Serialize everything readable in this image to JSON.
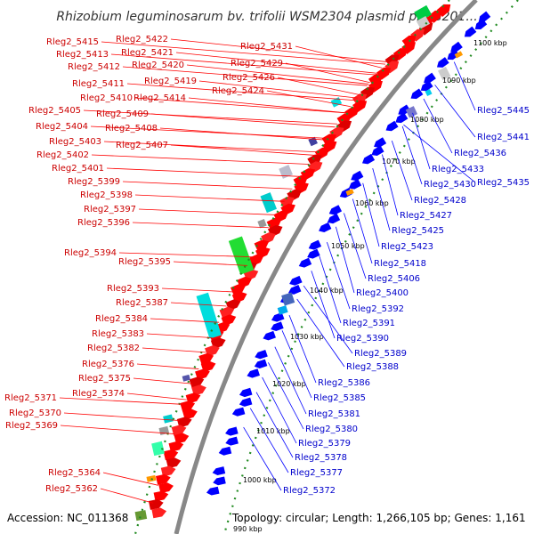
{
  "title": "Rhizobium leguminosarum bv. trifolii WSM2304 plasmid pRLG201...",
  "footer": {
    "accession": "Accession: NC_011368",
    "topology": "Topology: circular; Length: 1,266,105 bp; Genes: 1,161"
  },
  "colors": {
    "forward": "#ff0000",
    "reverse": "#0000ff",
    "backbone": "#888888",
    "gc_dots": "#228b22"
  },
  "kbp_ticks": [
    "1100 kbp",
    "1090 kbp",
    "1080 kbp",
    "1070 kbp",
    "1060 kbp",
    "1050 kbp",
    "1040 kbp",
    "1030 kbp",
    "1020 kbp",
    "1010 kbp",
    "1000 kbp",
    "990 kbp"
  ],
  "left_labels": [
    "Rleg2_5415",
    "Rleg2_5413",
    "Rleg2_5412",
    "Rleg2_5411",
    "Rleg2_5410",
    "Rleg2_5405",
    "Rleg2_5404",
    "Rleg2_5403",
    "Rleg2_5402",
    "Rleg2_5401",
    "Rleg2_5399",
    "Rleg2_5398",
    "Rleg2_5397",
    "Rleg2_5396",
    "Rleg2_5394",
    "Rleg2_5395",
    "Rleg2_5393",
    "Rleg2_5387",
    "Rleg2_5384",
    "Rleg2_5383",
    "Rleg2_5382",
    "Rleg2_5376",
    "Rleg2_5375",
    "Rleg2_5374",
    "Rleg2_5371",
    "Rleg2_5370",
    "Rleg2_5369",
    "Rleg2_5364",
    "Rleg2_5362"
  ],
  "mid_labels": [
    "Rleg2_5422",
    "Rleg2_5421",
    "Rleg2_5420",
    "Rleg2_5419",
    "Rleg2_5414",
    "Rleg2_5409",
    "Rleg2_5408",
    "Rleg2_5407",
    "Rleg2_5431",
    "Rleg2_5429",
    "Rleg2_5426",
    "Rleg2_5424"
  ],
  "right_labels": [
    "Rleg2_5445",
    "Rleg2_5441",
    "Rleg2_5436",
    "Rleg2_5433",
    "Rleg2_5430",
    "Rleg2_5435",
    "Rleg2_5428",
    "Rleg2_5427",
    "Rleg2_5425",
    "Rleg2_5423",
    "Rleg2_5418",
    "Rleg2_5406",
    "Rleg2_5400",
    "Rleg2_5392",
    "Rleg2_5391",
    "Rleg2_5390",
    "Rleg2_5389",
    "Rleg2_5388",
    "Rleg2_5386",
    "Rleg2_5385",
    "Rleg2_5381",
    "Rleg2_5380",
    "Rleg2_5379",
    "Rleg2_5378",
    "Rleg2_5377",
    "Rleg2_5372"
  ]
}
